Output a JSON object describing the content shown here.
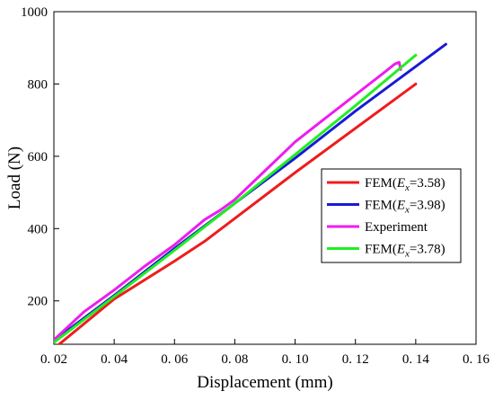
{
  "chart_data": {
    "type": "line",
    "xlabel": "Displacement (mm)",
    "ylabel": "Load (N)",
    "xlim": [
      0.02,
      0.16
    ],
    "ylim": [
      80,
      1000
    ],
    "x_ticks": [
      {
        "value": 0.02,
        "label": "0. 02"
      },
      {
        "value": 0.04,
        "label": "0. 04"
      },
      {
        "value": 0.06,
        "label": "0. 06"
      },
      {
        "value": 0.08,
        "label": "0. 08"
      },
      {
        "value": 0.1,
        "label": "0. 10"
      },
      {
        "value": 0.12,
        "label": "0. 12"
      },
      {
        "value": 0.14,
        "label": "0. 14"
      },
      {
        "value": 0.16,
        "label": "0. 16"
      }
    ],
    "y_ticks": [
      {
        "value": 200,
        "label": "200"
      },
      {
        "value": 400,
        "label": "400"
      },
      {
        "value": 600,
        "label": "600"
      },
      {
        "value": 800,
        "label": "800"
      },
      {
        "value": 1000,
        "label": "1000"
      }
    ],
    "grid": false,
    "legend_position": "right-middle",
    "series": [
      {
        "name": "FEM(Ex=3.58)",
        "legend_label": {
          "prefix": "FEM(",
          "var": "E",
          "sub": "x",
          "suffix": "=3.58)"
        },
        "color": "#ee1c1c",
        "x": [
          0.021,
          0.04,
          0.06,
          0.07,
          0.1,
          0.14
        ],
        "y": [
          75,
          205,
          310,
          365,
          555,
          800
        ]
      },
      {
        "name": "FEM(Ex=3.98)",
        "legend_label": {
          "prefix": "FEM(",
          "var": "E",
          "sub": "x",
          "suffix": "=3.98)"
        },
        "color": "#1a1ad6",
        "x": [
          0.02,
          0.04,
          0.06,
          0.08,
          0.1,
          0.12,
          0.15
        ],
        "y": [
          90,
          215,
          345,
          470,
          595,
          725,
          910
        ]
      },
      {
        "name": "Experiment",
        "legend_label": {
          "prefix": "Experiment",
          "var": "",
          "sub": "",
          "suffix": ""
        },
        "color": "#ee1cee",
        "x": [
          0.02,
          0.03,
          0.04,
          0.05,
          0.06,
          0.07,
          0.075,
          0.08,
          0.09,
          0.1,
          0.11,
          0.12,
          0.13,
          0.133,
          0.1345,
          0.135
        ],
        "y": [
          92,
          170,
          230,
          295,
          355,
          425,
          450,
          480,
          560,
          640,
          705,
          770,
          835,
          855,
          860,
          840
        ]
      },
      {
        "name": "FEM(Ex=3.78)",
        "legend_label": {
          "prefix": "FEM(",
          "var": "E",
          "sub": "x",
          "suffix": "=3.78)"
        },
        "color": "#22ee22",
        "x": [
          0.02,
          0.04,
          0.06,
          0.08,
          0.1,
          0.12,
          0.14
        ],
        "y": [
          85,
          212,
          340,
          470,
          605,
          740,
          880
        ]
      }
    ]
  }
}
